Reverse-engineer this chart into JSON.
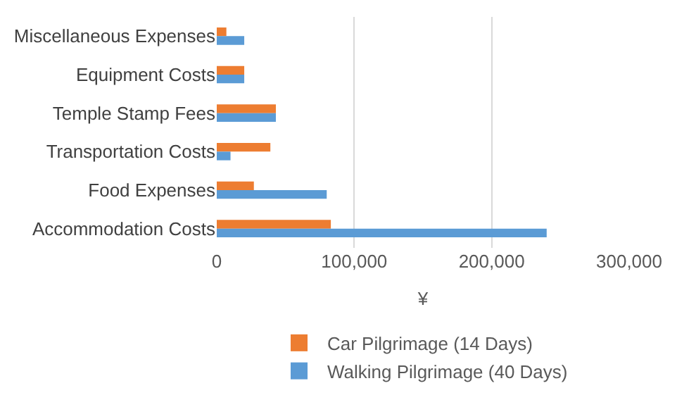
{
  "chart_data": {
    "type": "bar",
    "orientation": "horizontal",
    "xlabel": "¥",
    "categories": [
      "Miscellaneous Expenses",
      "Equipment Costs",
      "Temple Stamp Fees",
      "Transportation Costs",
      "Food Expenses",
      "Accommodation Costs"
    ],
    "series": [
      {
        "name": "Car Pilgrimage (14 Days)",
        "color": "#ed7d31",
        "values": [
          7000,
          20000,
          43000,
          39000,
          27000,
          83000
        ]
      },
      {
        "name": "Walking Pilgrimage (40 Days)",
        "color": "#5b9bd5",
        "values": [
          20000,
          20000,
          43000,
          10000,
          80000,
          240000
        ]
      }
    ],
    "xlim": [
      0,
      300000
    ],
    "xticks": [
      {
        "value": 0,
        "label": "0"
      },
      {
        "value": 100000,
        "label": "100,000"
      },
      {
        "value": 200000,
        "label": "200,000"
      },
      {
        "value": 300000,
        "label": "300,000"
      }
    ],
    "grid": "x",
    "legend": "bottom"
  }
}
